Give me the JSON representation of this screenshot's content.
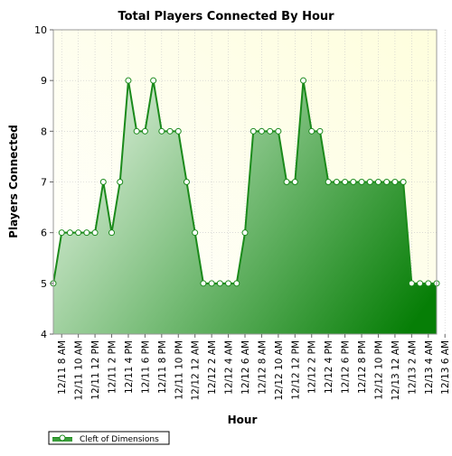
{
  "chart_data": {
    "type": "area",
    "title": "Total Players Connected By Hour",
    "xlabel": "Hour",
    "ylabel": "Players Connected",
    "ylim": [
      4,
      10
    ],
    "yticks": [
      4,
      5,
      6,
      7,
      8,
      9,
      10
    ],
    "grid": true,
    "legend_position": "bottom-left",
    "tick_labels": [
      "12/11 8 AM",
      "12/11 10 AM",
      "12/11 12 PM",
      "12/11 2 PM",
      "12/11 4 PM",
      "12/11 6 PM",
      "12/11 8 PM",
      "12/11 10 PM",
      "12/12 12 AM",
      "12/12 2 AM",
      "12/12 4 AM",
      "12/12 6 AM",
      "12/12 8 AM",
      "12/12 10 AM",
      "12/12 12 PM",
      "12/12 2 PM",
      "12/12 4 PM",
      "12/12 6 PM",
      "12/12 8 PM",
      "12/12 10 PM",
      "12/13 12 AM",
      "12/13 2 AM",
      "12/13 4 AM",
      "12/13 6 AM"
    ],
    "series": [
      {
        "name": "Cleft of Dimensions",
        "color": "#1b8a1b",
        "values": [
          5,
          6,
          6,
          6,
          6,
          6,
          7,
          6,
          7,
          9,
          8,
          8,
          9,
          8,
          8,
          8,
          7,
          6,
          5,
          5,
          5,
          5,
          5,
          6,
          8,
          8,
          8,
          8,
          7,
          7,
          9,
          8,
          8,
          7,
          7,
          7,
          7,
          7,
          7,
          7,
          7,
          7,
          7,
          5,
          5,
          5,
          5
        ]
      }
    ]
  },
  "colors": {
    "plot_bg_top": "#fefee0",
    "line": "#1b8a1b",
    "fill_light": "#e6f3e4",
    "fill_dark": "#0a7e0a"
  }
}
